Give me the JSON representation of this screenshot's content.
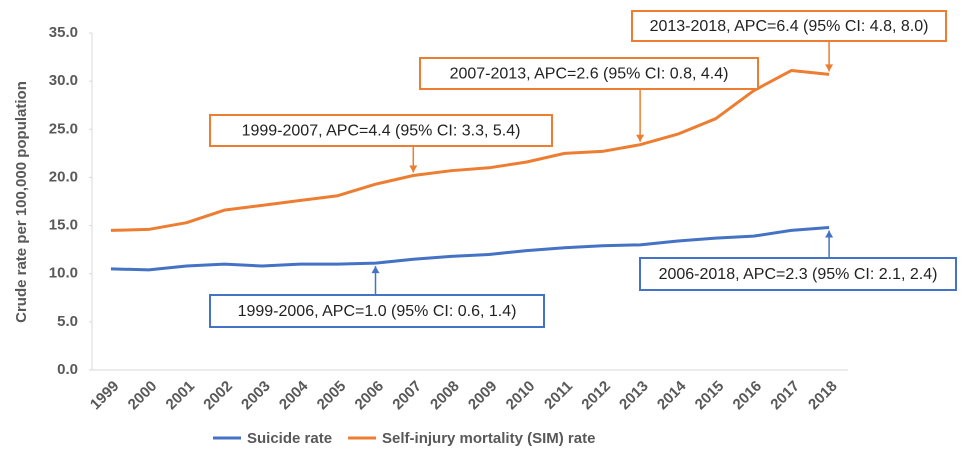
{
  "chart_data": {
    "type": "line",
    "y_label": "Crude rate per 100,000 population",
    "categories": [
      "1999",
      "2000",
      "2001",
      "2002",
      "2003",
      "2004",
      "2005",
      "2006",
      "2007",
      "2008",
      "2009",
      "2010",
      "2011",
      "2012",
      "2013",
      "2014",
      "2015",
      "2016",
      "2017",
      "2018"
    ],
    "series": [
      {
        "name": "Suicide rate",
        "color": "#4472c4",
        "values": [
          10.5,
          10.4,
          10.8,
          11.0,
          10.8,
          11.0,
          11.0,
          11.1,
          11.5,
          11.8,
          12.0,
          12.4,
          12.7,
          12.9,
          13.0,
          13.4,
          13.7,
          13.9,
          14.5,
          14.8
        ]
      },
      {
        "name": "Self-injury mortality (SIM) rate",
        "color": "#ed7d31",
        "values": [
          14.5,
          14.6,
          15.3,
          16.6,
          17.1,
          17.6,
          18.1,
          19.3,
          20.2,
          20.7,
          21.0,
          21.6,
          22.5,
          22.7,
          23.4,
          24.5,
          26.1,
          29.0,
          31.1,
          30.7
        ]
      }
    ],
    "ylim": [
      0,
      35
    ],
    "yticks": [
      {
        "value": 0,
        "label": "0.0"
      },
      {
        "value": 5,
        "label": "5.0"
      },
      {
        "value": 10,
        "label": "10.0"
      },
      {
        "value": 15,
        "label": "15.0"
      },
      {
        "value": 20,
        "label": "20.0"
      },
      {
        "value": 25,
        "label": "25.0"
      },
      {
        "value": 30,
        "label": "30.0"
      },
      {
        "value": 35,
        "label": "35.0"
      }
    ],
    "grid": false,
    "legend": "bottom",
    "annotations": [
      "1999-2007, APC=4.4 (95% CI: 3.3, 5.4)",
      "2007-2013, APC=2.6 (95% CI: 0.8, 4.4)",
      "2013-2018, APC=6.4 (95% CI: 4.8, 8.0)",
      "1999-2006, APC=1.0 (95% CI: 0.6, 1.4)",
      "2006-2018, APC=2.3 (95% CI: 2.1, 2.4)"
    ]
  }
}
